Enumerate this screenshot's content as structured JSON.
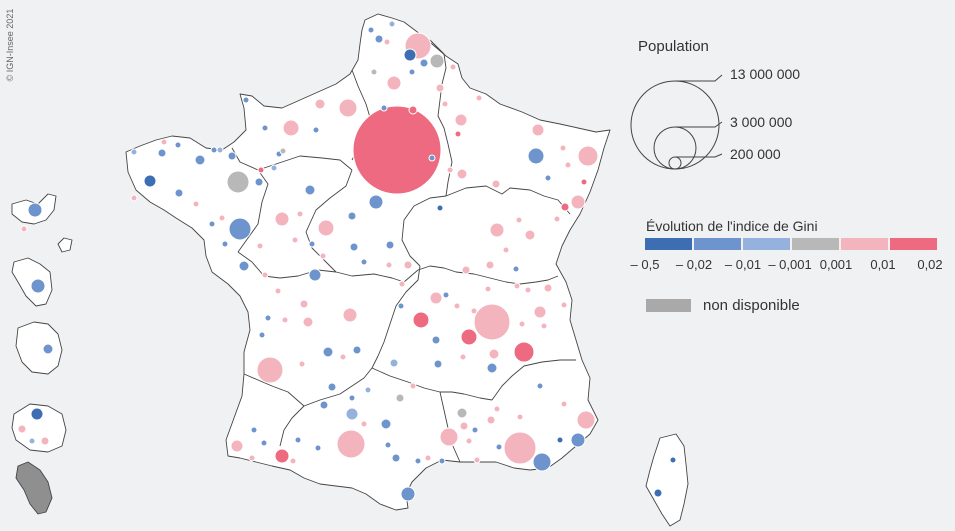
{
  "copyright": "© IGN-Insee 2021",
  "legend": {
    "population_title": "Population",
    "population_sizes": [
      {
        "label": "13 000 000",
        "value": 13000000
      },
      {
        "label": "3 000 000",
        "value": 3000000
      },
      {
        "label": "200 000",
        "value": 200000
      }
    ],
    "gini_title": "Évolution de l'indice de Gini",
    "gini_classes": [
      {
        "color": "#3d6eb4"
      },
      {
        "color": "#6d94cc"
      },
      {
        "color": "#95b2de"
      },
      {
        "color": "#b8b8b8"
      },
      {
        "color": "#f4b4bd"
      },
      {
        "color": "#ee6a80"
      }
    ],
    "gini_ticks": [
      "– 0,5",
      "– 0,02",
      "– 0,01",
      "– 0,001",
      "0,001",
      "0,01",
      "0,02"
    ],
    "na_label": "non disponible",
    "na_color": "#a9a9a9"
  }
}
